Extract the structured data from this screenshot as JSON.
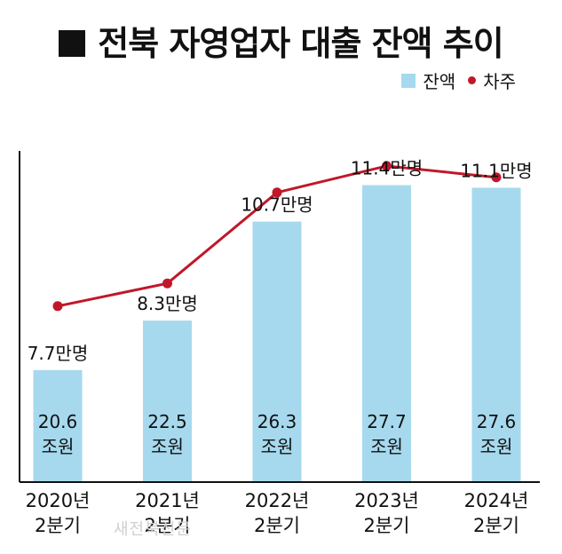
{
  "title": "전북 자영업자 대출 잔액 추이",
  "legend": {
    "bar_label": "잔액",
    "line_label": "차주"
  },
  "watermark": "새전북신문",
  "colors": {
    "bar": "#a6d9ee",
    "line": "#c0182a",
    "axis": "#111111"
  },
  "chart_data": {
    "type": "bar",
    "categories": [
      {
        "line1": "2020년",
        "line2": "2분기"
      },
      {
        "line1": "2021년",
        "line2": "2분기"
      },
      {
        "line1": "2022년",
        "line2": "2분기"
      },
      {
        "line1": "2023년",
        "line2": "2분기"
      },
      {
        "line1": "2024년",
        "line2": "2분기"
      }
    ],
    "series": [
      {
        "name": "잔액",
        "type": "bar",
        "values": [
          20.6,
          22.5,
          26.3,
          27.7,
          27.6
        ],
        "labels": [
          {
            "value": "20.6",
            "unit": "조원"
          },
          {
            "value": "22.5",
            "unit": "조원"
          },
          {
            "value": "26.3",
            "unit": "조원"
          },
          {
            "value": "27.7",
            "unit": "조원"
          },
          {
            "value": "27.6",
            "unit": "조원"
          }
        ]
      },
      {
        "name": "차주",
        "type": "line",
        "values": [
          7.7,
          8.3,
          10.7,
          11.4,
          11.1
        ],
        "labels": [
          "7.7만명",
          "8.3만명",
          "10.7만명",
          "11.4만명",
          "11.1만명"
        ]
      }
    ],
    "bar_ylim": [
      16.3,
      28.4
    ],
    "line_ylim": [
      5.0,
      12.5
    ]
  }
}
